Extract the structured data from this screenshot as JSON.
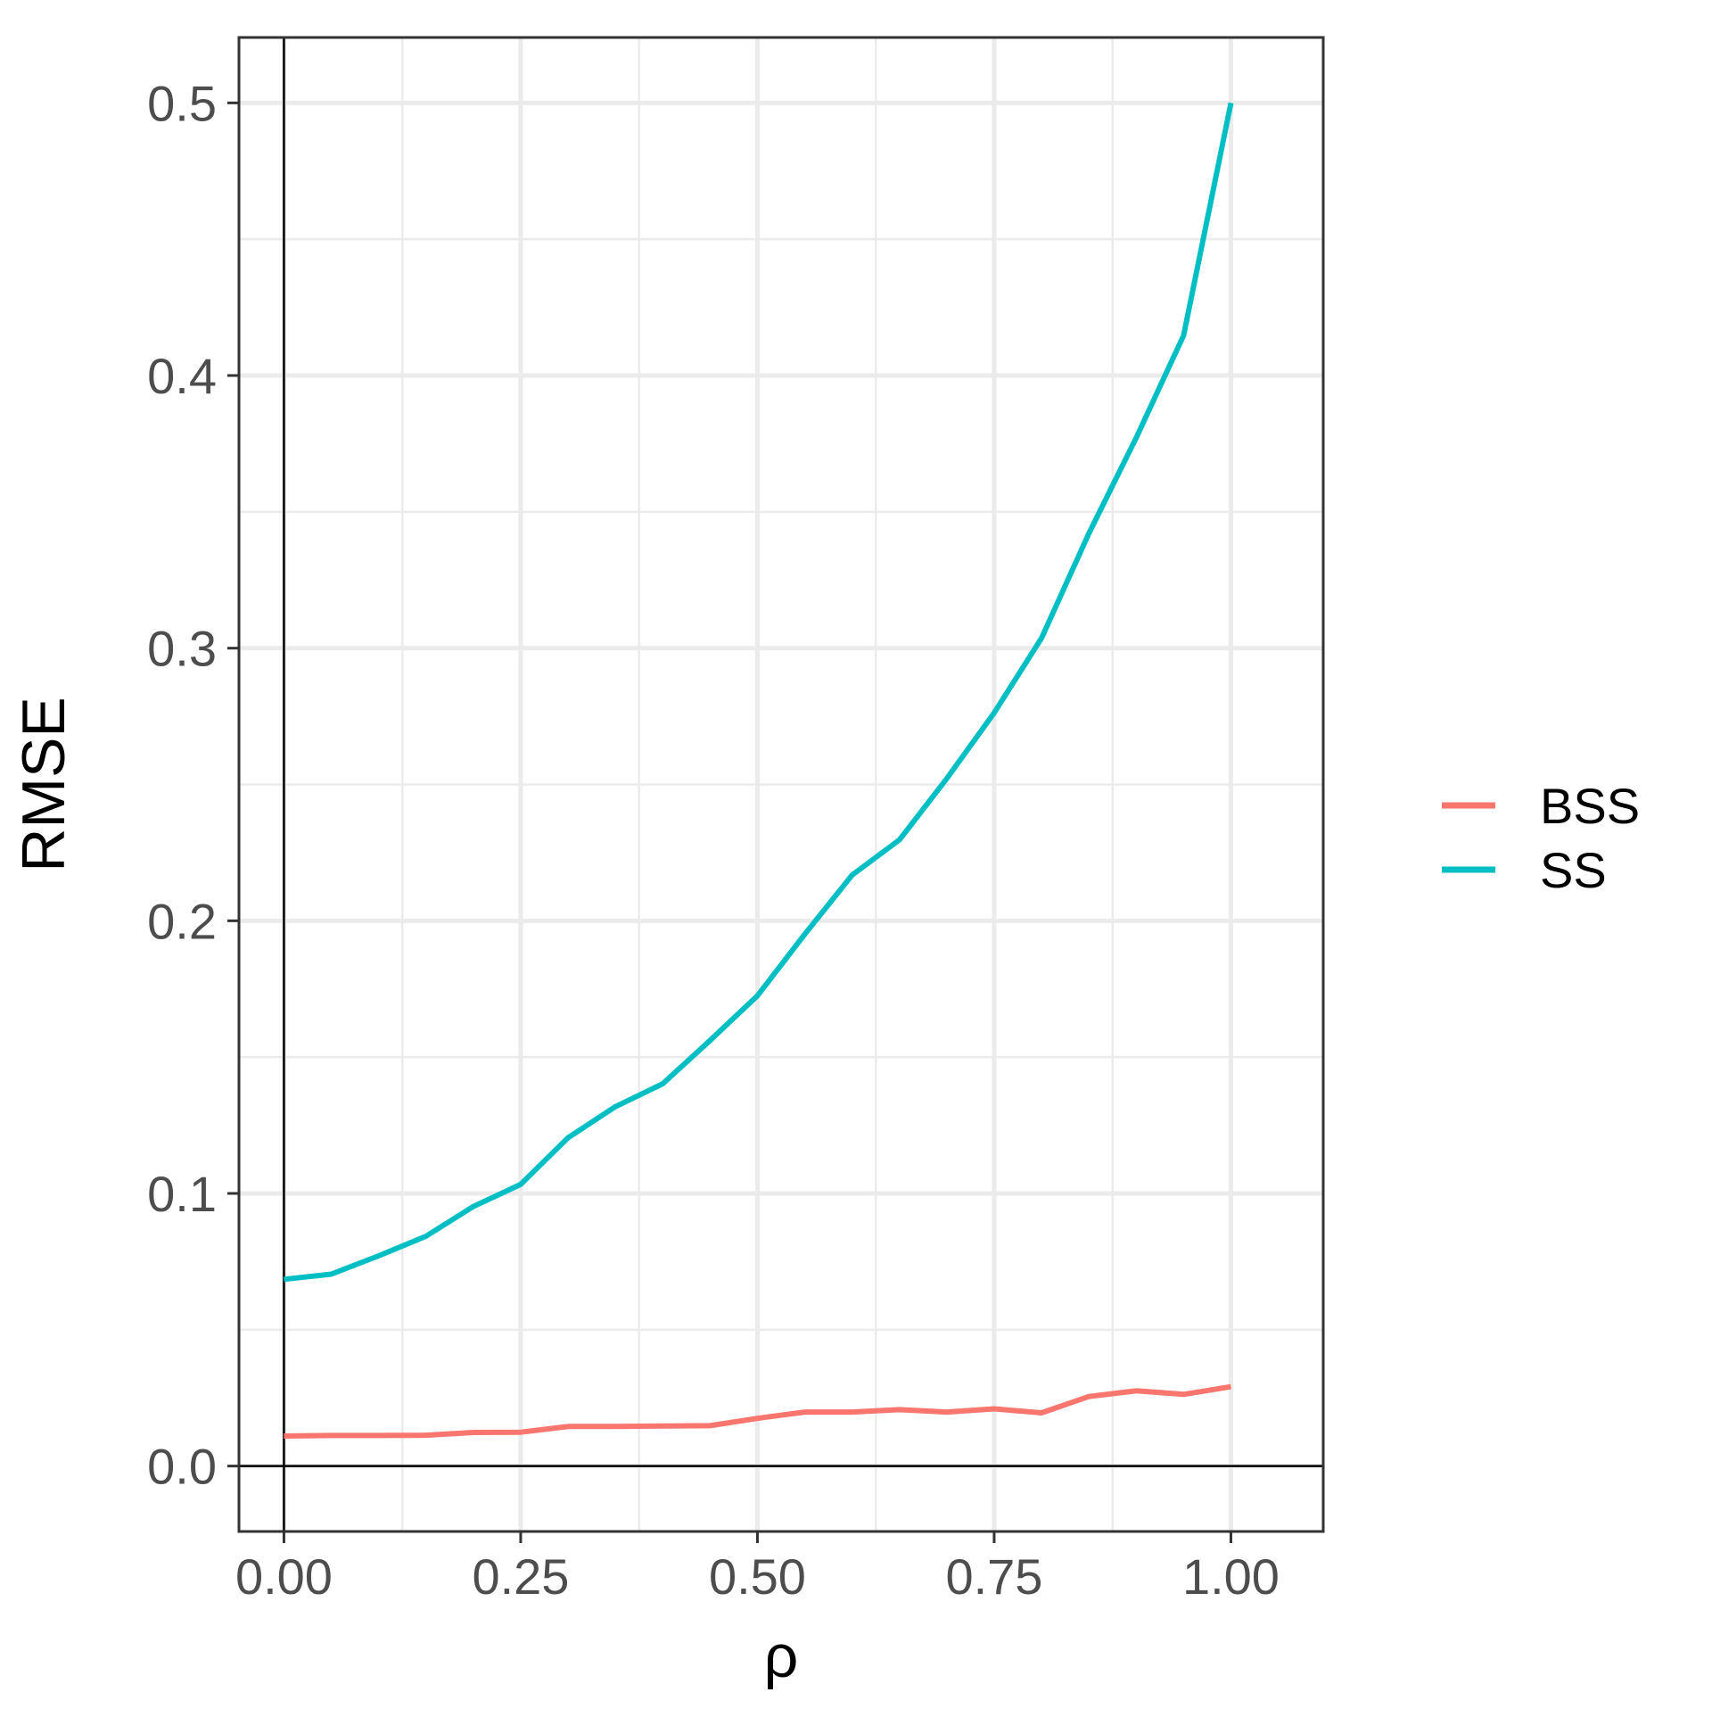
{
  "chart_data": {
    "type": "line",
    "xlabel": "ρ",
    "ylabel": "RMSE",
    "xlim": [
      -0.0475,
      1.0975
    ],
    "ylim": [
      -0.024,
      0.524
    ],
    "x_ticks": [
      0.0,
      0.25,
      0.5,
      0.75,
      1.0
    ],
    "x_tick_labels": [
      "0.00",
      "0.25",
      "0.50",
      "0.75",
      "1.00"
    ],
    "x_minor_ticks": [
      0.125,
      0.375,
      0.625,
      0.875
    ],
    "y_ticks": [
      0.0,
      0.1,
      0.2,
      0.3,
      0.4,
      0.5
    ],
    "y_tick_labels": [
      "0.0",
      "0.1",
      "0.2",
      "0.3",
      "0.4",
      "0.5"
    ],
    "y_minor_ticks": [
      0.05,
      0.15,
      0.25,
      0.35,
      0.45
    ],
    "grid": true,
    "reference_lines": {
      "x": 0,
      "y": 0
    },
    "legend_position": "right",
    "x": [
      0.0,
      0.05,
      0.1,
      0.15,
      0.2,
      0.25,
      0.3,
      0.35,
      0.4,
      0.45,
      0.5,
      0.55,
      0.6,
      0.65,
      0.7,
      0.75,
      0.8,
      0.85,
      0.9,
      0.95,
      1.0
    ],
    "series": [
      {
        "name": "BSS",
        "color": "#F8766D",
        "values": [
          0.011,
          0.0112,
          0.0112,
          0.0113,
          0.0123,
          0.0124,
          0.0145,
          0.0145,
          0.0147,
          0.0148,
          0.0175,
          0.0198,
          0.0198,
          0.0207,
          0.0198,
          0.021,
          0.0195,
          0.0255,
          0.0276,
          0.0263,
          0.0291
        ]
      },
      {
        "name": "SS",
        "color": "#00BFC4",
        "values": [
          0.0685,
          0.0704,
          0.0771,
          0.0843,
          0.0952,
          0.1033,
          0.1204,
          0.1318,
          0.1402,
          0.1561,
          0.1725,
          0.1951,
          0.2168,
          0.2297,
          0.2522,
          0.2763,
          0.3037,
          0.3421,
          0.3772,
          0.4147,
          0.5
        ]
      }
    ]
  }
}
